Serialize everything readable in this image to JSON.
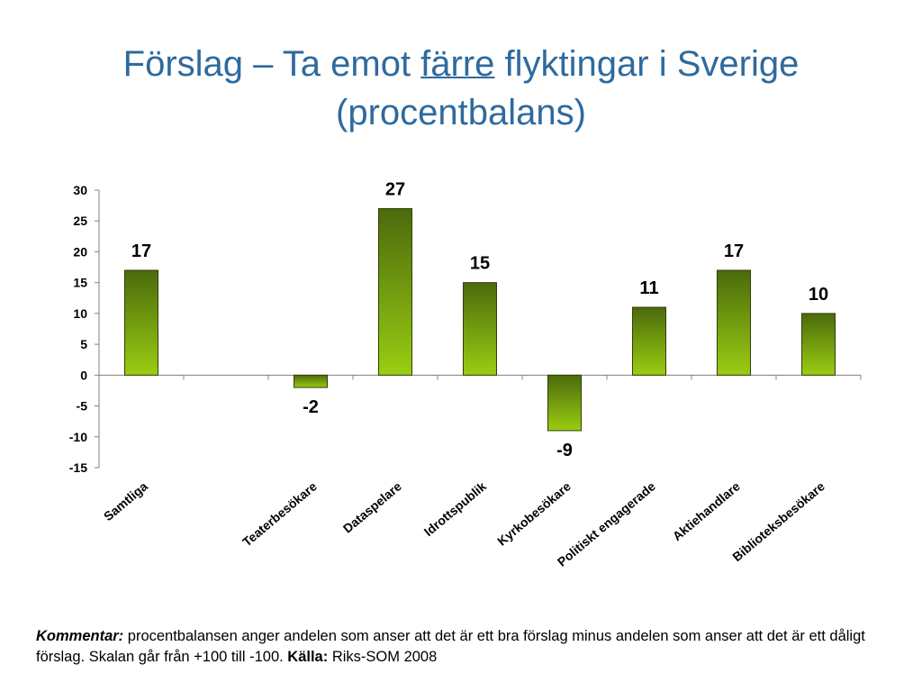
{
  "title": {
    "part1": "Förslag – Ta emot ",
    "underlined": "färre",
    "part2": " flyktingar i Sverige",
    "line2": "(procentbalans)"
  },
  "comment": {
    "label": "Kommentar:",
    "text": " procentbalansen anger andelen som anser att det är ett bra förslag minus andelen som anser att det är ett dåligt förslag. Skalan går från +100 till -100. ",
    "source_label": "Källa:",
    "source": " Riks-SOM 2008"
  },
  "chart_data": {
    "type": "bar",
    "categories": [
      "Samtliga",
      "",
      "Teaterbesökare",
      "Dataspelare",
      "Idrottspublik",
      "Kyrkobesökare",
      "Politiskt engagerade",
      "Aktiehandlare",
      "Biblioteksbesökare"
    ],
    "values": [
      17,
      null,
      -2,
      27,
      15,
      -9,
      11,
      17,
      10
    ],
    "data_labels": [
      "17",
      "",
      "-2",
      "27",
      "15",
      "-9",
      "11",
      "17",
      "10"
    ],
    "yticks": [
      30,
      25,
      20,
      15,
      10,
      5,
      0,
      -5,
      -10,
      -15
    ],
    "ylim": [
      -15,
      30
    ],
    "grid": false,
    "legend": "none",
    "bar_color_top": "#4b6a0c",
    "bar_color_bottom": "#9acd12",
    "bar_border": "#2f3f08"
  }
}
